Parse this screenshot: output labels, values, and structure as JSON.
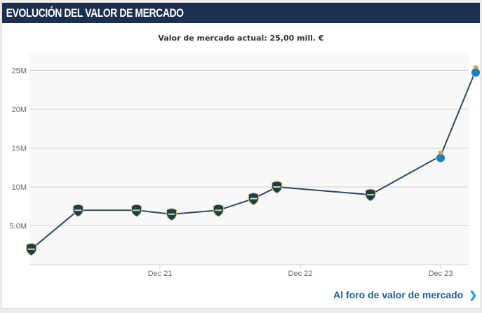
{
  "header": {
    "title": "EVOLUCIÓN DEL VALOR DE MERCADO"
  },
  "current_value_label": "Valor de mercado actual: 25,00 mill. €",
  "footer_link": {
    "label": "Al foro de valor de mercado",
    "icon": "chevron-right-icon"
  },
  "colors": {
    "header_bg": "#1b2f4e",
    "line": "#2f4863",
    "plot_bg": "#f8f8f8",
    "link": "#1a5f8a",
    "boca_crest": "#163e5c",
    "porto_crest": "#1e7fc0"
  },
  "chart_data": {
    "type": "line",
    "title": "",
    "xlabel": "",
    "ylabel": "",
    "ylim": [
      0,
      26000000
    ],
    "y_ticks": [
      {
        "value": 5000000,
        "label": "5.0M"
      },
      {
        "value": 10000000,
        "label": "10M"
      },
      {
        "value": 15000000,
        "label": "15M"
      },
      {
        "value": 20000000,
        "label": "20M"
      },
      {
        "value": 25000000,
        "label": "25M"
      }
    ],
    "x_ticks": [
      {
        "date": "2021-12",
        "label": "Dec 21"
      },
      {
        "date": "2022-12",
        "label": "Dec 22"
      },
      {
        "date": "2023-12",
        "label": "Dec 23"
      }
    ],
    "grid": true,
    "points": [
      {
        "date": "2021-01",
        "value": 2000000,
        "club": "Boca Juniors"
      },
      {
        "date": "2021-05",
        "value": 7000000,
        "club": "Boca Juniors"
      },
      {
        "date": "2021-10",
        "value": 7000000,
        "club": "Boca Juniors"
      },
      {
        "date": "2022-01",
        "value": 6500000,
        "club": "Boca Juniors"
      },
      {
        "date": "2022-05",
        "value": 7000000,
        "club": "Boca Juniors"
      },
      {
        "date": "2022-08",
        "value": 8500000,
        "club": "Boca Juniors"
      },
      {
        "date": "2022-10",
        "value": 10000000,
        "club": "Boca Juniors"
      },
      {
        "date": "2023-06",
        "value": 9000000,
        "club": "Boca Juniors"
      },
      {
        "date": "2023-12",
        "value": 14000000,
        "club": "FC Porto"
      },
      {
        "date": "2024-03",
        "value": 25000000,
        "club": "FC Porto"
      }
    ]
  }
}
